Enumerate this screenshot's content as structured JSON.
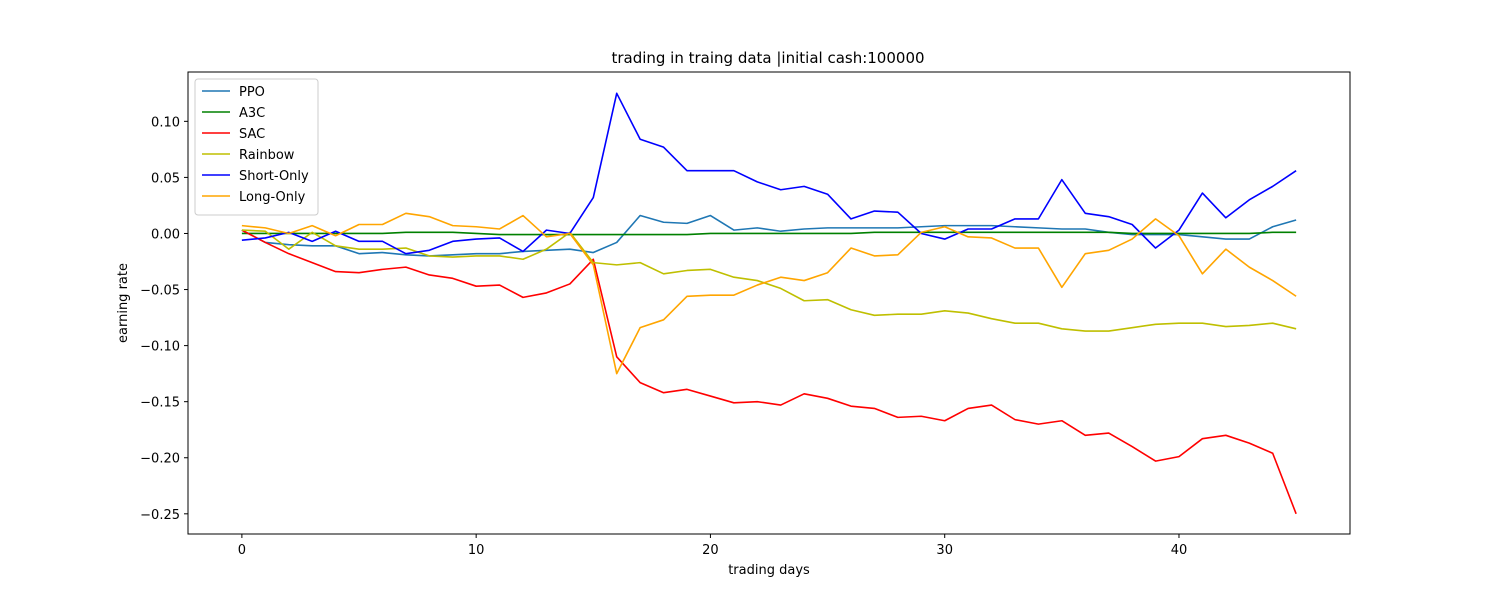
{
  "chart_data": {
    "type": "line",
    "title": "trading in traing data |initial cash:100000",
    "xlabel": "trading days",
    "ylabel": "earning rate",
    "xlim": [
      -2.3,
      47.3
    ],
    "ylim": [
      -0.268,
      0.144
    ],
    "xticks": [
      0,
      10,
      20,
      30,
      40
    ],
    "yticks": [
      0.1,
      0.05,
      0.0,
      -0.05,
      -0.1,
      -0.15,
      -0.2,
      -0.25
    ],
    "ytick_labels": [
      "0.10",
      "0.05",
      "0.00",
      "−0.05",
      "−0.10",
      "−0.15",
      "−0.20",
      "−0.25"
    ],
    "xtick_labels": [
      "0",
      "10",
      "20",
      "30",
      "40"
    ],
    "grid": false,
    "legend_position": "top-left",
    "series": [
      {
        "name": "PPO",
        "color": "#1f77b4",
        "values": [
          0.003,
          -0.008,
          -0.01,
          -0.011,
          -0.011,
          -0.018,
          -0.017,
          -0.019,
          -0.02,
          -0.019,
          -0.018,
          -0.018,
          -0.016,
          -0.015,
          -0.014,
          -0.017,
          -0.008,
          0.016,
          0.01,
          0.009,
          0.016,
          0.003,
          0.005,
          0.002,
          0.004,
          0.005,
          0.005,
          0.005,
          0.005,
          0.006,
          0.007,
          0.007,
          0.007,
          0.006,
          0.005,
          0.004,
          0.004,
          0.001,
          -0.001,
          -0.001,
          -0.001,
          -0.003,
          -0.005,
          -0.005,
          0.006,
          0.012
        ]
      },
      {
        "name": "A3C",
        "color": "#008000",
        "values": [
          0.0,
          0.0,
          0.0,
          0.0,
          0.0,
          0.0,
          0.0,
          0.001,
          0.001,
          0.001,
          0.0,
          -0.001,
          -0.001,
          -0.001,
          -0.001,
          -0.001,
          -0.001,
          -0.001,
          -0.001,
          -0.001,
          0.0,
          0.0,
          0.0,
          0.0,
          0.0,
          0.0,
          0.0,
          0.001,
          0.001,
          0.001,
          0.001,
          0.001,
          0.001,
          0.001,
          0.001,
          0.001,
          0.001,
          0.001,
          0.0,
          0.0,
          0.0,
          0.0,
          0.0,
          0.0,
          0.001,
          0.001
        ]
      },
      {
        "name": "SAC",
        "color": "#ff0000",
        "values": [
          0.003,
          -0.008,
          -0.018,
          -0.026,
          -0.034,
          -0.035,
          -0.032,
          -0.03,
          -0.037,
          -0.04,
          -0.047,
          -0.046,
          -0.057,
          -0.053,
          -0.045,
          -0.023,
          -0.11,
          -0.133,
          -0.142,
          -0.139,
          -0.145,
          -0.151,
          -0.15,
          -0.153,
          -0.143,
          -0.147,
          -0.154,
          -0.156,
          -0.164,
          -0.163,
          -0.167,
          -0.156,
          -0.153,
          -0.166,
          -0.17,
          -0.167,
          -0.18,
          -0.178,
          -0.19,
          -0.203,
          -0.199,
          -0.183,
          -0.18,
          -0.187,
          -0.196,
          -0.25
        ]
      },
      {
        "name": "Rainbow",
        "color": "#bfbf00",
        "values": [
          0.003,
          0.002,
          -0.014,
          0.001,
          -0.011,
          -0.014,
          -0.014,
          -0.013,
          -0.02,
          -0.021,
          -0.02,
          -0.02,
          -0.023,
          -0.014,
          0.001,
          -0.026,
          -0.028,
          -0.026,
          -0.036,
          -0.033,
          -0.032,
          -0.039,
          -0.042,
          -0.049,
          -0.06,
          -0.059,
          -0.068,
          -0.073,
          -0.072,
          -0.072,
          -0.069,
          -0.071,
          -0.076,
          -0.08,
          -0.08,
          -0.085,
          -0.087,
          -0.087,
          -0.084,
          -0.081,
          -0.08,
          -0.08,
          -0.083,
          -0.082,
          -0.08,
          -0.085
        ]
      },
      {
        "name": "Short-Only",
        "color": "#0000ff",
        "values": [
          -0.006,
          -0.004,
          0.001,
          -0.007,
          0.002,
          -0.007,
          -0.007,
          -0.018,
          -0.015,
          -0.007,
          -0.005,
          -0.004,
          -0.016,
          0.003,
          0.0,
          0.032,
          0.125,
          0.084,
          0.077,
          0.056,
          0.056,
          0.056,
          0.046,
          0.039,
          0.042,
          0.035,
          0.013,
          0.02,
          0.019,
          0.0,
          -0.005,
          0.004,
          0.004,
          0.013,
          0.013,
          0.048,
          0.018,
          0.015,
          0.008,
          -0.013,
          0.003,
          0.036,
          0.014,
          0.03,
          0.042,
          0.056
        ]
      },
      {
        "name": "Long-Only",
        "color": "#ffa500",
        "values": [
          0.007,
          0.005,
          0.0,
          0.007,
          -0.002,
          0.008,
          0.008,
          0.018,
          0.015,
          0.007,
          0.006,
          0.004,
          0.016,
          -0.003,
          0.0,
          -0.028,
          -0.125,
          -0.084,
          -0.077,
          -0.056,
          -0.055,
          -0.055,
          -0.046,
          -0.039,
          -0.042,
          -0.035,
          -0.013,
          -0.02,
          -0.019,
          0.001,
          0.006,
          -0.003,
          -0.004,
          -0.013,
          -0.013,
          -0.048,
          -0.018,
          -0.015,
          -0.005,
          0.013,
          -0.002,
          -0.036,
          -0.014,
          -0.03,
          -0.042,
          -0.056
        ]
      }
    ]
  }
}
